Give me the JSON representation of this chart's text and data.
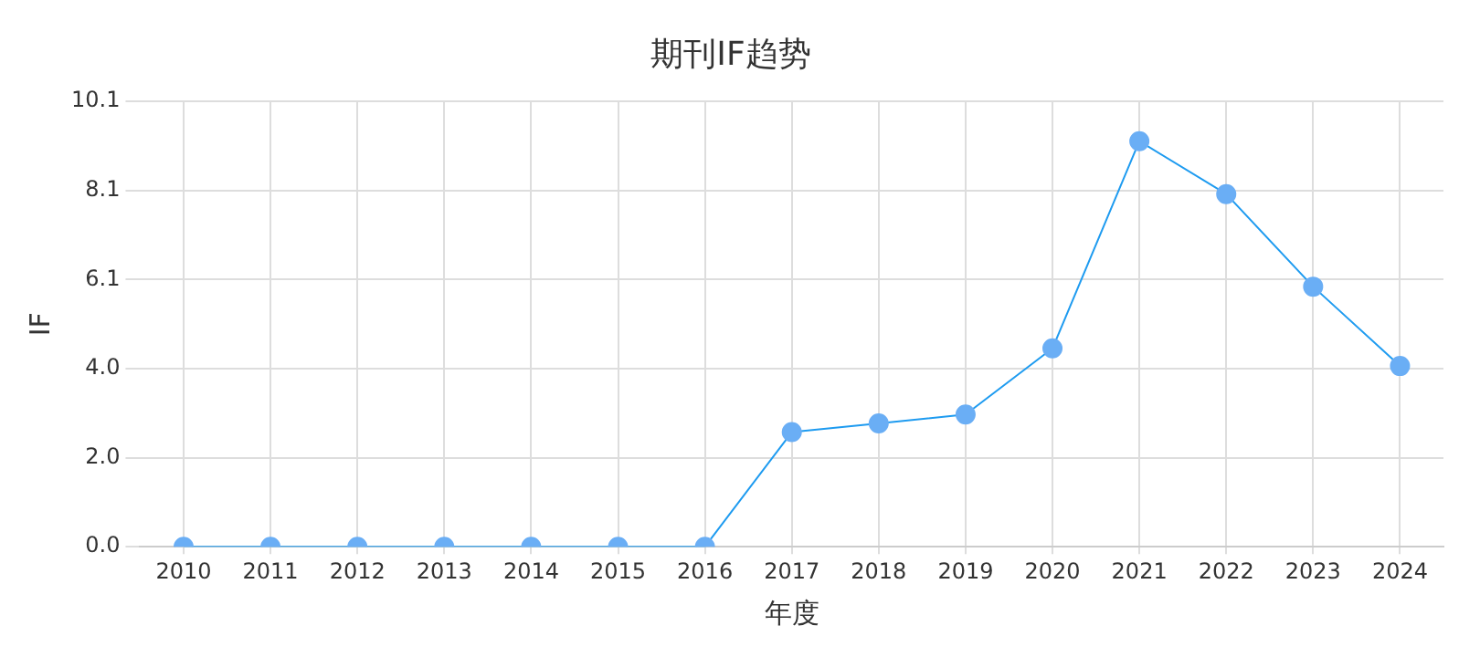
{
  "chart_data": {
    "type": "line",
    "title": "期刊IF趋势",
    "xlabel": "年度",
    "ylabel": "IF",
    "categories": [
      "2010",
      "2011",
      "2012",
      "2013",
      "2014",
      "2015",
      "2016",
      "2017",
      "2018",
      "2019",
      "2020",
      "2021",
      "2022",
      "2023",
      "2024"
    ],
    "series": [
      {
        "color": "#1e9bf0",
        "values": [
          0,
          0,
          0,
          0,
          0,
          0,
          0,
          2.6,
          2.8,
          3.0,
          4.5,
          9.2,
          8.0,
          5.9,
          4.1
        ]
      }
    ],
    "ylim": [
      0,
      10.1
    ],
    "yticks": [
      {
        "value": 0,
        "label": "0.0"
      },
      {
        "value": 2.02,
        "label": "2.0"
      },
      {
        "value": 4.04,
        "label": "4.0"
      },
      {
        "value": 6.06,
        "label": "6.1"
      },
      {
        "value": 8.08,
        "label": "8.1"
      },
      {
        "value": 10.1,
        "label": "10.1"
      }
    ],
    "grid": true,
    "marker": "circle",
    "line_style": "solid",
    "legend": false
  }
}
